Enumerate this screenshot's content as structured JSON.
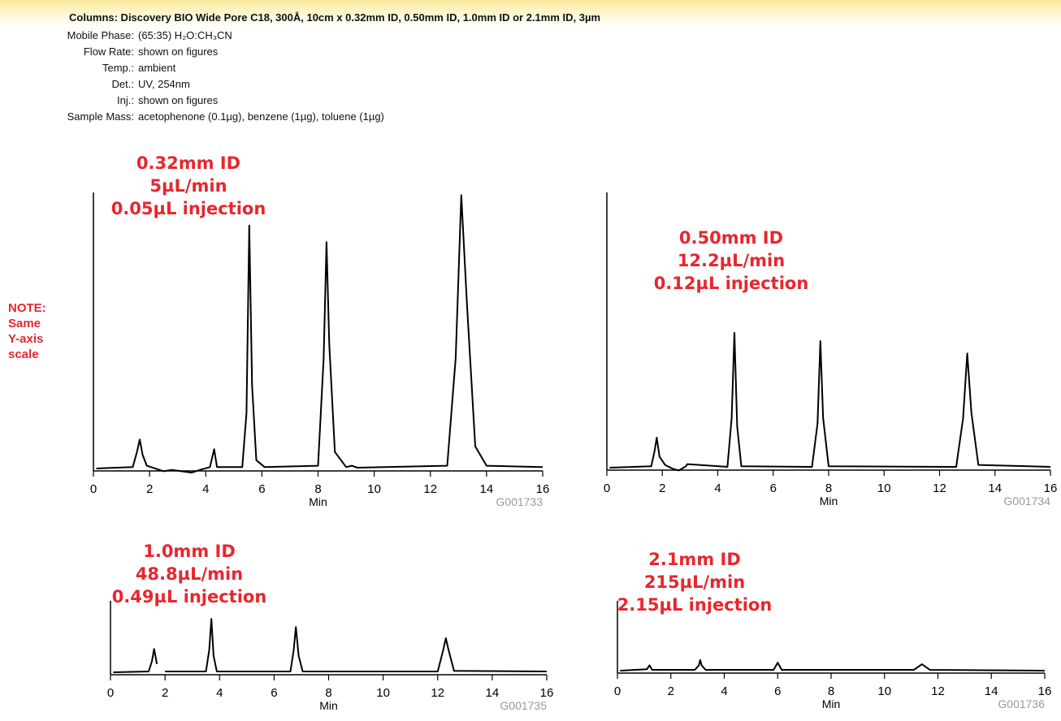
{
  "header": {
    "title": "Columns: Discovery BIO Wide Pore C18, 300Å, 10cm x 0.32mm ID, 0.50mm ID, 1.0mm ID or 2.1mm ID, 3µm",
    "conditions": [
      {
        "label": "Mobile Phase:",
        "value": "(65:35) H₂O:CH₃CN"
      },
      {
        "label": "Flow Rate:",
        "value": "shown on figures"
      },
      {
        "label": "Temp.:",
        "value": "ambient"
      },
      {
        "label": "Det.:",
        "value": "UV, 254nm"
      },
      {
        "label": "Inj.:",
        "value": "shown on figures"
      },
      {
        "label": "Sample Mass:",
        "value": "acetophenone (0.1µg), benzene (1µg), toluene (1µg)"
      }
    ]
  },
  "note": [
    "NOTE:",
    "Same",
    "Y-axis",
    "scale"
  ],
  "chart_data": [
    {
      "type": "line",
      "annotation": [
        "0.32mm ID",
        "5µL/min",
        "0.05µL injection"
      ],
      "x_label": "Min",
      "code": "G001733",
      "xlim": [
        0,
        16
      ],
      "xticks": [
        0,
        2,
        4,
        6,
        8,
        10,
        12,
        14,
        16
      ],
      "ylim": [
        0,
        100
      ],
      "color": "#000000",
      "x": [
        0.1,
        1.4,
        1.55,
        1.65,
        1.75,
        1.9,
        2.5,
        2.8,
        3.5,
        3.8,
        4.15,
        4.3,
        4.4,
        5.3,
        5.45,
        5.55,
        5.65,
        5.8,
        6.1,
        8.0,
        8.2,
        8.3,
        8.4,
        8.6,
        9.0,
        9.2,
        9.4,
        12.6,
        12.9,
        13.1,
        13.3,
        13.6,
        14,
        16
      ],
      "values": [
        0,
        0.5,
        6,
        10.5,
        5,
        1,
        -1,
        -0.5,
        -1.5,
        -0.5,
        0.5,
        7,
        0.5,
        0.5,
        20,
        88,
        30,
        3,
        0.5,
        1,
        40,
        82,
        45,
        6,
        0.5,
        1,
        0.3,
        1,
        40,
        99,
        60,
        8,
        1,
        0.5
      ]
    },
    {
      "type": "line",
      "annotation": [
        "0.50mm ID",
        "12.2µL/min",
        "0.12µL injection"
      ],
      "x_label": "Min",
      "code": "G001734",
      "xlim": [
        0,
        16
      ],
      "xticks": [
        0,
        2,
        4,
        6,
        8,
        10,
        12,
        14,
        16
      ],
      "ylim": [
        0,
        100
      ],
      "color": "#000000",
      "x": [
        0.1,
        1.6,
        1.72,
        1.8,
        1.9,
        2.1,
        2.4,
        2.6,
        2.85,
        2.9,
        4.35,
        4.5,
        4.6,
        4.7,
        4.85,
        7.4,
        7.6,
        7.7,
        7.8,
        8.0,
        12.6,
        12.85,
        13.0,
        13.15,
        13.4,
        16
      ],
      "values": [
        0,
        0.5,
        6,
        10.9,
        4,
        1,
        -0.5,
        -1,
        0.5,
        1.3,
        0.3,
        18,
        49,
        15,
        0.5,
        0.3,
        16,
        46,
        18,
        0.5,
        0.3,
        18,
        41.5,
        20,
        1,
        0.3
      ]
    },
    {
      "type": "line",
      "annotation": [
        "1.0mm ID",
        "48.8µL/min",
        "0.49µL injection"
      ],
      "x_label": "Min",
      "code": "G001735",
      "xlim": [
        0,
        16
      ],
      "xticks": [
        0,
        2,
        4,
        6,
        8,
        10,
        12,
        14,
        16
      ],
      "ylim": [
        0,
        26
      ],
      "color": "#000000",
      "x": [
        0.1,
        1.4,
        1.52,
        1.6,
        1.7,
        1.8,
        2.0,
        3.5,
        3.62,
        3.7,
        3.78,
        3.9,
        6.6,
        6.72,
        6.8,
        6.9,
        7.05,
        12.0,
        12.2,
        12.3,
        12.4,
        12.6,
        16
      ],
      "values": [
        0,
        0.3,
        4,
        8.5,
        3,
        null,
        0.3,
        0.3,
        8,
        19.4,
        6,
        0.3,
        0.3,
        8,
        16.5,
        6,
        0.3,
        0.3,
        8,
        12.4,
        8,
        0.5,
        0.3
      ]
    },
    {
      "type": "line",
      "annotation": [
        "2.1mm ID",
        "215µL/min",
        "2.15µL injection"
      ],
      "x_label": "Min",
      "code": "G001736",
      "xlim": [
        0,
        16
      ],
      "xticks": [
        0,
        2,
        4,
        6,
        8,
        10,
        12,
        14,
        16
      ],
      "ylim": [
        0,
        26
      ],
      "color": "#000000",
      "x": [
        0.1,
        1.1,
        1.2,
        1.3,
        2.9,
        3.05,
        3.1,
        3.15,
        3.3,
        5.85,
        6.0,
        6.15,
        11.1,
        11.4,
        11.7,
        16
      ],
      "values": [
        0,
        0.5,
        2,
        0.3,
        0.3,
        2,
        4,
        2,
        0.3,
        0.3,
        3,
        0.3,
        0.3,
        2.4,
        0.3,
        0
      ]
    }
  ]
}
